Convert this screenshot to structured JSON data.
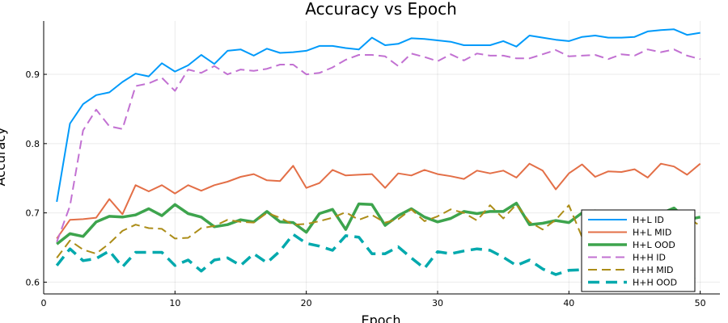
{
  "chart_data": {
    "type": "line",
    "title": "Accuracy vs Epoch",
    "xlabel": "Epoch",
    "ylabel": "Accuracy",
    "xlim": [
      0,
      51.5
    ],
    "ylim": [
      0.583,
      0.977
    ],
    "xticks": [
      0,
      10,
      20,
      30,
      40,
      50
    ],
    "yticks": [
      0.6,
      0.7,
      0.8,
      0.9
    ],
    "ytick_labels": [
      "0.6",
      "0.7",
      "0.8",
      "0.9"
    ],
    "grid": true,
    "legend_position": "bottom-right",
    "x": [
      1,
      2,
      3,
      4,
      5,
      6,
      7,
      8,
      9,
      10,
      11,
      12,
      13,
      14,
      15,
      16,
      17,
      18,
      19,
      20,
      21,
      22,
      23,
      24,
      25,
      26,
      27,
      28,
      29,
      30,
      31,
      32,
      33,
      34,
      35,
      36,
      37,
      38,
      39,
      40,
      41,
      42,
      43,
      44,
      45,
      46,
      47,
      48,
      49,
      50
    ],
    "series": [
      {
        "name": "H+L ID",
        "color": "#009AFA",
        "dash": "solid",
        "width": 2,
        "values": [
          0.716,
          0.829,
          0.857,
          0.87,
          0.874,
          0.889,
          0.901,
          0.897,
          0.916,
          0.904,
          0.913,
          0.928,
          0.915,
          0.934,
          0.936,
          0.927,
          0.937,
          0.931,
          0.932,
          0.934,
          0.941,
          0.941,
          0.938,
          0.936,
          0.953,
          0.942,
          0.944,
          0.952,
          0.951,
          0.949,
          0.947,
          0.942,
          0.942,
          0.942,
          0.948,
          0.94,
          0.956,
          0.953,
          0.95,
          0.948,
          0.954,
          0.956,
          0.953,
          0.953,
          0.954,
          0.962,
          0.964,
          0.965,
          0.957,
          0.96
        ]
      },
      {
        "name": "H+L MID",
        "color": "#E36F47",
        "dash": "solid",
        "width": 2,
        "values": [
          0.663,
          0.69,
          0.691,
          0.693,
          0.72,
          0.698,
          0.74,
          0.731,
          0.74,
          0.728,
          0.74,
          0.732,
          0.74,
          0.745,
          0.752,
          0.756,
          0.747,
          0.746,
          0.768,
          0.736,
          0.743,
          0.762,
          0.754,
          0.755,
          0.756,
          0.736,
          0.757,
          0.754,
          0.762,
          0.756,
          0.753,
          0.749,
          0.761,
          0.757,
          0.761,
          0.751,
          0.771,
          0.761,
          0.734,
          0.757,
          0.77,
          0.752,
          0.76,
          0.759,
          0.763,
          0.751,
          0.771,
          0.767,
          0.755,
          0.771
        ]
      },
      {
        "name": "H+L OOD",
        "color": "#3DA44D",
        "dash": "solid",
        "width": 3.5,
        "values": [
          0.655,
          0.67,
          0.666,
          0.687,
          0.695,
          0.694,
          0.697,
          0.706,
          0.696,
          0.712,
          0.699,
          0.694,
          0.68,
          0.683,
          0.69,
          0.687,
          0.702,
          0.687,
          0.686,
          0.672,
          0.699,
          0.705,
          0.676,
          0.713,
          0.712,
          0.682,
          0.696,
          0.706,
          0.694,
          0.687,
          0.692,
          0.702,
          0.699,
          0.702,
          0.702,
          0.714,
          0.683,
          0.685,
          0.689,
          0.686,
          0.7,
          0.703,
          0.689,
          0.692,
          0.7,
          0.695,
          0.699,
          0.707,
          0.69,
          0.694
        ]
      },
      {
        "name": "H+H ID",
        "color": "#C271D2",
        "dash": "dash",
        "width": 2,
        "values": [
          0.658,
          0.71,
          0.819,
          0.849,
          0.825,
          0.821,
          0.883,
          0.887,
          0.895,
          0.876,
          0.907,
          0.902,
          0.912,
          0.9,
          0.907,
          0.905,
          0.908,
          0.914,
          0.914,
          0.9,
          0.902,
          0.91,
          0.921,
          0.928,
          0.928,
          0.926,
          0.912,
          0.93,
          0.925,
          0.919,
          0.929,
          0.92,
          0.93,
          0.927,
          0.927,
          0.923,
          0.923,
          0.929,
          0.935,
          0.926,
          0.927,
          0.928,
          0.922,
          0.929,
          0.927,
          0.936,
          0.932,
          0.936,
          0.927,
          0.922
        ]
      },
      {
        "name": "H+H MID",
        "color": "#AC8D18",
        "dash": "dash",
        "width": 2,
        "values": [
          0.635,
          0.66,
          0.647,
          0.641,
          0.656,
          0.674,
          0.683,
          0.678,
          0.677,
          0.663,
          0.664,
          0.678,
          0.681,
          0.69,
          0.687,
          0.686,
          0.7,
          0.693,
          0.683,
          0.684,
          0.688,
          0.693,
          0.701,
          0.69,
          0.697,
          0.686,
          0.691,
          0.705,
          0.688,
          0.695,
          0.705,
          0.7,
          0.689,
          0.711,
          0.692,
          0.712,
          0.687,
          0.676,
          0.69,
          0.711,
          0.665,
          0.678,
          0.687,
          0.686,
          0.69,
          0.693,
          0.697,
          0.693,
          0.694,
          0.681
        ]
      },
      {
        "name": "H+H OOD",
        "color": "#00A9AD",
        "dash": "dash",
        "width": 3.5,
        "values": [
          0.624,
          0.648,
          0.631,
          0.634,
          0.645,
          0.622,
          0.643,
          0.643,
          0.643,
          0.624,
          0.632,
          0.616,
          0.632,
          0.635,
          0.624,
          0.641,
          0.628,
          0.645,
          0.669,
          0.656,
          0.652,
          0.646,
          0.667,
          0.665,
          0.641,
          0.641,
          0.651,
          0.635,
          0.62,
          0.644,
          0.641,
          0.645,
          0.648,
          0.646,
          0.636,
          0.624,
          0.632,
          0.619,
          0.611,
          0.617,
          0.618,
          0.601,
          0.592,
          0.597,
          0.596,
          0.6,
          0.607,
          0.602,
          0.605,
          0.609
        ]
      }
    ]
  }
}
